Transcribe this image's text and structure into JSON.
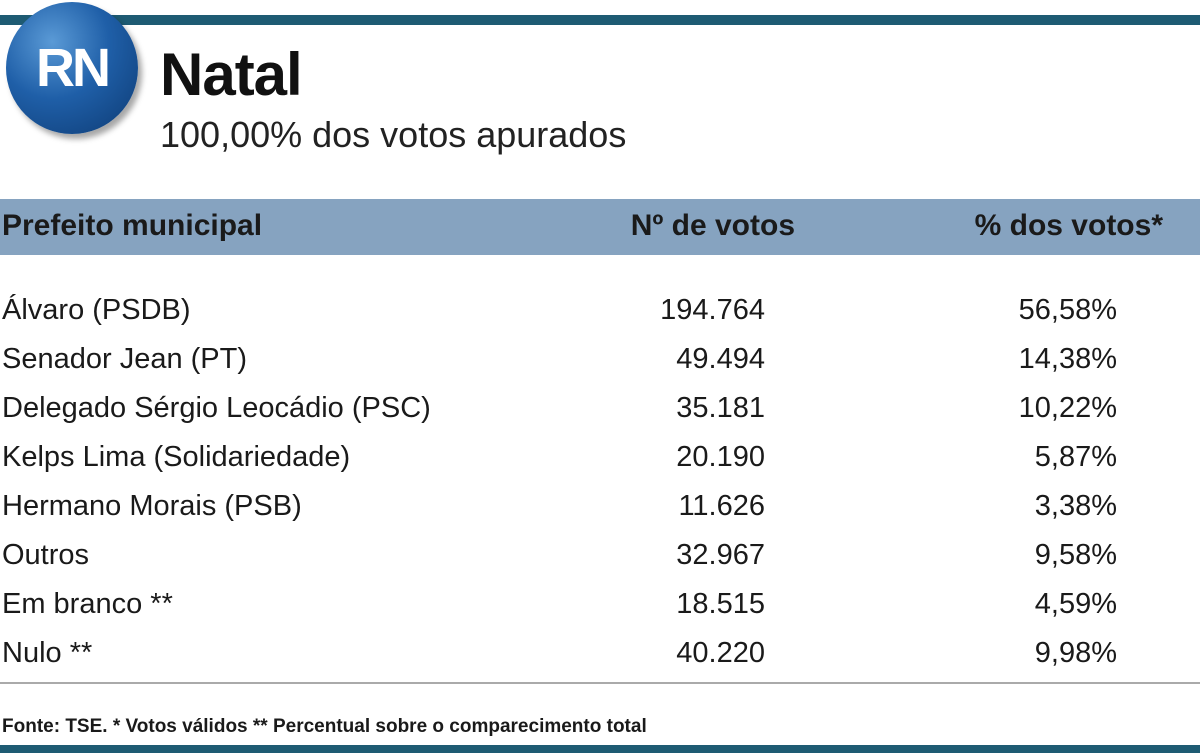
{
  "badge": "RN",
  "header": {
    "title": "Natal",
    "subtitle": "100,00% dos votos apurados"
  },
  "table": {
    "columns": [
      "Prefeito municipal",
      "Nº de votos",
      "% dos votos*"
    ],
    "rows": [
      [
        "Álvaro (PSDB)",
        "194.764",
        "56,58%"
      ],
      [
        "Senador Jean (PT)",
        "49.494",
        "14,38%"
      ],
      [
        "Delegado Sérgio Leocádio (PSC)",
        "35.181",
        "10,22%"
      ],
      [
        "Kelps Lima (Solidariedade)",
        "20.190",
        "5,87%"
      ],
      [
        "Hermano Morais (PSB)",
        "11.626",
        "3,38%"
      ],
      [
        "Outros",
        "32.967",
        "9,58%"
      ],
      [
        "Em branco **",
        "18.515",
        "4,59%"
      ],
      [
        "Nulo **",
        "40.220",
        "9,98%"
      ]
    ]
  },
  "footnote": "Fonte: TSE. * Votos válidos ** Percentual sobre o comparecimento total"
}
